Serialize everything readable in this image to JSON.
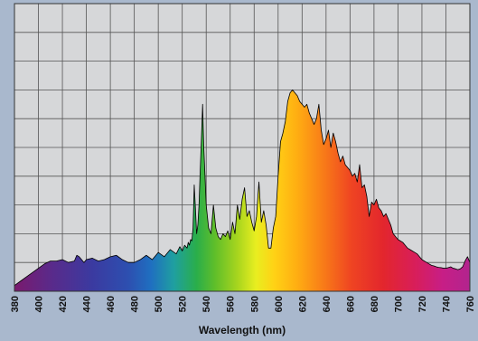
{
  "chart_data": {
    "type": "area",
    "title": "",
    "xlabel": "Wavelength (nm)",
    "ylabel": "",
    "xlim": [
      380,
      760
    ],
    "ylim": [
      0,
      10
    ],
    "grid": true,
    "legend": "none",
    "x_ticks": [
      380,
      400,
      420,
      440,
      460,
      480,
      500,
      520,
      540,
      560,
      580,
      600,
      620,
      640,
      660,
      680,
      700,
      720,
      740,
      760
    ],
    "x_tick_labels": [
      "380",
      "400",
      "420",
      "440",
      "460",
      "480",
      "500",
      "520",
      "540",
      "560",
      "580",
      "600",
      "620",
      "640",
      "660",
      "680",
      "700",
      "720",
      "740",
      "760"
    ],
    "series": [
      {
        "x": [
          380,
          385,
          390,
          395,
          400,
          405,
          410,
          415,
          420,
          425,
          430,
          432,
          434,
          436,
          438,
          440,
          445,
          450,
          455,
          460,
          465,
          470,
          475,
          480,
          485,
          490,
          495,
          500,
          505,
          510,
          515,
          518,
          520,
          522,
          524,
          525,
          526,
          527,
          528,
          529,
          530,
          531,
          532,
          533,
          534,
          535,
          536,
          537,
          538,
          540,
          542,
          544,
          546,
          548,
          550,
          552,
          554,
          556,
          558,
          560,
          562,
          564,
          566,
          568,
          570,
          572,
          574,
          576,
          578,
          580,
          582,
          584,
          586,
          588,
          590,
          592,
          594,
          596,
          598,
          600,
          602,
          604,
          606,
          608,
          610,
          612,
          614,
          616,
          618,
          620,
          622,
          624,
          626,
          628,
          630,
          632,
          634,
          636,
          638,
          640,
          642,
          644,
          646,
          648,
          650,
          652,
          654,
          656,
          658,
          660,
          662,
          664,
          666,
          668,
          670,
          672,
          674,
          676,
          678,
          680,
          682,
          684,
          686,
          688,
          690,
          692,
          694,
          696,
          698,
          700,
          702,
          704,
          706,
          708,
          710,
          712,
          714,
          716,
          718,
          720,
          722,
          724,
          726,
          728,
          730,
          732,
          734,
          736,
          738,
          740,
          742,
          744,
          746,
          748,
          750,
          752,
          754,
          756,
          758,
          760
        ],
        "y": [
          0.2,
          0.35,
          0.5,
          0.65,
          0.8,
          0.95,
          1.05,
          1.05,
          1.1,
          1.0,
          1.05,
          1.25,
          1.2,
          1.1,
          1.0,
          1.1,
          1.15,
          1.05,
          1.1,
          1.2,
          1.25,
          1.1,
          1.0,
          1.0,
          1.1,
          1.25,
          1.1,
          1.35,
          1.2,
          1.45,
          1.3,
          1.55,
          1.4,
          1.6,
          1.5,
          1.7,
          1.6,
          1.8,
          1.75,
          2.2,
          3.7,
          2.9,
          2.0,
          2.3,
          3.0,
          4.2,
          5.3,
          6.5,
          5.0,
          3.0,
          2.2,
          2.0,
          3.0,
          2.2,
          1.9,
          1.8,
          2.0,
          1.9,
          2.1,
          1.8,
          2.4,
          2.0,
          3.0,
          2.5,
          3.2,
          3.6,
          2.6,
          2.8,
          2.4,
          2.1,
          2.6,
          3.8,
          2.4,
          2.8,
          2.3,
          1.5,
          1.5,
          2.2,
          2.6,
          4.0,
          5.2,
          5.5,
          5.9,
          6.6,
          6.9,
          7.0,
          6.9,
          6.8,
          6.6,
          6.5,
          6.4,
          6.5,
          6.2,
          6.0,
          5.8,
          6.0,
          6.5,
          5.6,
          5.1,
          5.3,
          5.6,
          5.0,
          5.5,
          5.2,
          4.8,
          4.5,
          4.7,
          4.4,
          4.3,
          4.2,
          4.0,
          4.1,
          3.8,
          4.4,
          3.6,
          3.7,
          3.3,
          2.6,
          3.1,
          3.0,
          3.2,
          2.9,
          2.8,
          2.6,
          2.7,
          2.5,
          2.3,
          2.0,
          1.9,
          1.8,
          1.75,
          1.7,
          1.6,
          1.5,
          1.45,
          1.4,
          1.35,
          1.3,
          1.2,
          1.1,
          1.05,
          1.0,
          0.95,
          0.9,
          0.88,
          0.85,
          0.83,
          0.82,
          0.8,
          0.8,
          0.82,
          0.85,
          0.8,
          0.78,
          0.75,
          0.78,
          0.85,
          1.05,
          1.2,
          1.0
        ]
      }
    ]
  },
  "colors": {
    "page_background": "#a9b8cd",
    "plot_background": "#d6d7d9",
    "grid": "#555555",
    "outline": "#000000"
  }
}
